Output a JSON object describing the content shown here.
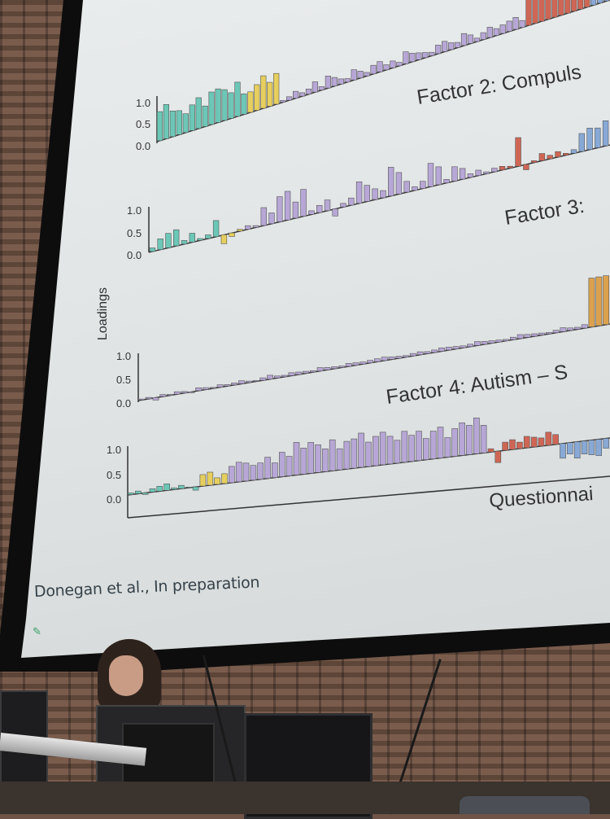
{
  "slide": {
    "y_axis_label": "Loadings",
    "credit": "Donegan et al., In preparation",
    "x_label": "Questionnai",
    "factor_labels": [
      "Factor 2: Compuls",
      "Factor 3:",
      "Factor 4: Autism – S"
    ],
    "tick_labels": [
      "1.0",
      "0.5",
      "0.0"
    ]
  },
  "colors": {
    "screen": "#e3e7e7",
    "teal": "#6cc7b6",
    "yellow": "#e6cf5d",
    "purple": "#b7a7d6",
    "red": "#cf6655",
    "blue": "#88a9d6",
    "orange": "#dca14d",
    "axis": "#333333"
  }
}
